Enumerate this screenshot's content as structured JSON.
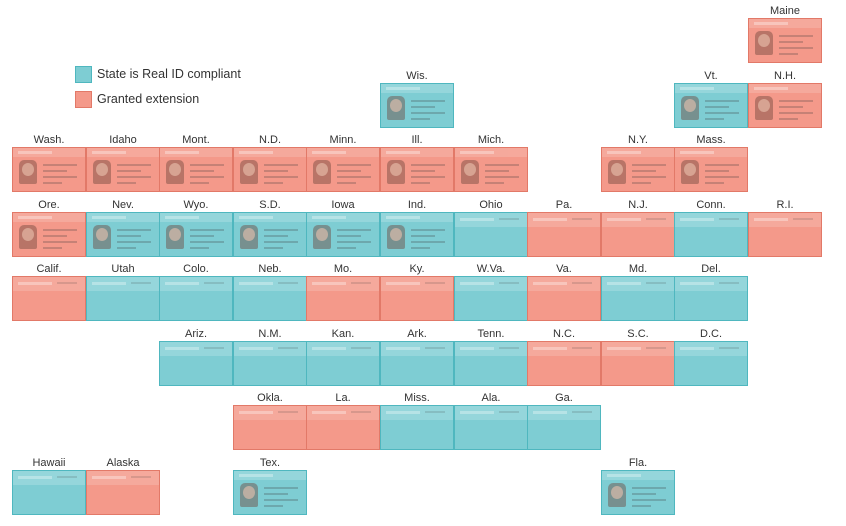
{
  "legend": {
    "compliant": "State is Real ID compliant",
    "extension": "Granted extension"
  },
  "colors": {
    "compliant": "#7ecdd3",
    "compliant_border": "#4fb7bf",
    "extension": "#f4998a",
    "extension_border": "#e27968"
  },
  "states": [
    {
      "name": "Maine",
      "status": "extension",
      "card": "partial"
    },
    {
      "name": "Wis.",
      "status": "compliant",
      "card": "full"
    },
    {
      "name": "Vt.",
      "status": "compliant",
      "card": "full"
    },
    {
      "name": "N.H.",
      "status": "extension",
      "card": "full"
    },
    {
      "name": "Wash.",
      "status": "extension",
      "card": "full"
    },
    {
      "name": "Idaho",
      "status": "extension",
      "card": "full"
    },
    {
      "name": "Mont.",
      "status": "extension",
      "card": "full"
    },
    {
      "name": "N.D.",
      "status": "extension",
      "card": "full"
    },
    {
      "name": "Minn.",
      "status": "extension",
      "card": "full"
    },
    {
      "name": "Ill.",
      "status": "extension",
      "card": "full"
    },
    {
      "name": "Mich.",
      "status": "extension",
      "card": "full"
    },
    {
      "name": "N.Y.",
      "status": "extension",
      "card": "full"
    },
    {
      "name": "Mass.",
      "status": "extension",
      "card": "full"
    },
    {
      "name": "Ore.",
      "status": "extension",
      "card": "full"
    },
    {
      "name": "Nev.",
      "status": "compliant",
      "card": "full"
    },
    {
      "name": "Wyo.",
      "status": "compliant",
      "card": "full"
    },
    {
      "name": "S.D.",
      "status": "compliant",
      "card": "full"
    },
    {
      "name": "Iowa",
      "status": "compliant",
      "card": "full"
    },
    {
      "name": "Ind.",
      "status": "compliant",
      "card": "full"
    },
    {
      "name": "Ohio",
      "status": "compliant",
      "card": "strip"
    },
    {
      "name": "Pa.",
      "status": "extension",
      "card": "strip"
    },
    {
      "name": "N.J.",
      "status": "extension",
      "card": "strip"
    },
    {
      "name": "Conn.",
      "status": "compliant",
      "card": "strip"
    },
    {
      "name": "R.I.",
      "status": "extension",
      "card": "strip"
    },
    {
      "name": "Calif.",
      "status": "extension",
      "card": "strip"
    },
    {
      "name": "Utah",
      "status": "compliant",
      "card": "strip"
    },
    {
      "name": "Colo.",
      "status": "compliant",
      "card": "strip"
    },
    {
      "name": "Neb.",
      "status": "compliant",
      "card": "strip"
    },
    {
      "name": "Mo.",
      "status": "extension",
      "card": "strip"
    },
    {
      "name": "Ky.",
      "status": "extension",
      "card": "strip"
    },
    {
      "name": "W.Va.",
      "status": "compliant",
      "card": "strip"
    },
    {
      "name": "Va.",
      "status": "extension",
      "card": "strip"
    },
    {
      "name": "Md.",
      "status": "compliant",
      "card": "strip"
    },
    {
      "name": "Del.",
      "status": "compliant",
      "card": "strip"
    },
    {
      "name": "Ariz.",
      "status": "compliant",
      "card": "strip"
    },
    {
      "name": "N.M.",
      "status": "compliant",
      "card": "strip"
    },
    {
      "name": "Kan.",
      "status": "compliant",
      "card": "strip"
    },
    {
      "name": "Ark.",
      "status": "compliant",
      "card": "strip"
    },
    {
      "name": "Tenn.",
      "status": "compliant",
      "card": "strip"
    },
    {
      "name": "N.C.",
      "status": "extension",
      "card": "strip"
    },
    {
      "name": "S.C.",
      "status": "extension",
      "card": "strip"
    },
    {
      "name": "D.C.",
      "status": "compliant",
      "card": "strip"
    },
    {
      "name": "Okla.",
      "status": "extension",
      "card": "strip"
    },
    {
      "name": "La.",
      "status": "extension",
      "card": "strip"
    },
    {
      "name": "Miss.",
      "status": "compliant",
      "card": "strip"
    },
    {
      "name": "Ala.",
      "status": "compliant",
      "card": "strip"
    },
    {
      "name": "Ga.",
      "status": "compliant",
      "card": "strip"
    },
    {
      "name": "Hawaii",
      "status": "compliant",
      "card": "strip"
    },
    {
      "name": "Alaska",
      "status": "extension",
      "card": "strip"
    },
    {
      "name": "Tex.",
      "status": "compliant",
      "card": "full"
    },
    {
      "name": "Fla.",
      "status": "compliant",
      "card": "full"
    }
  ]
}
